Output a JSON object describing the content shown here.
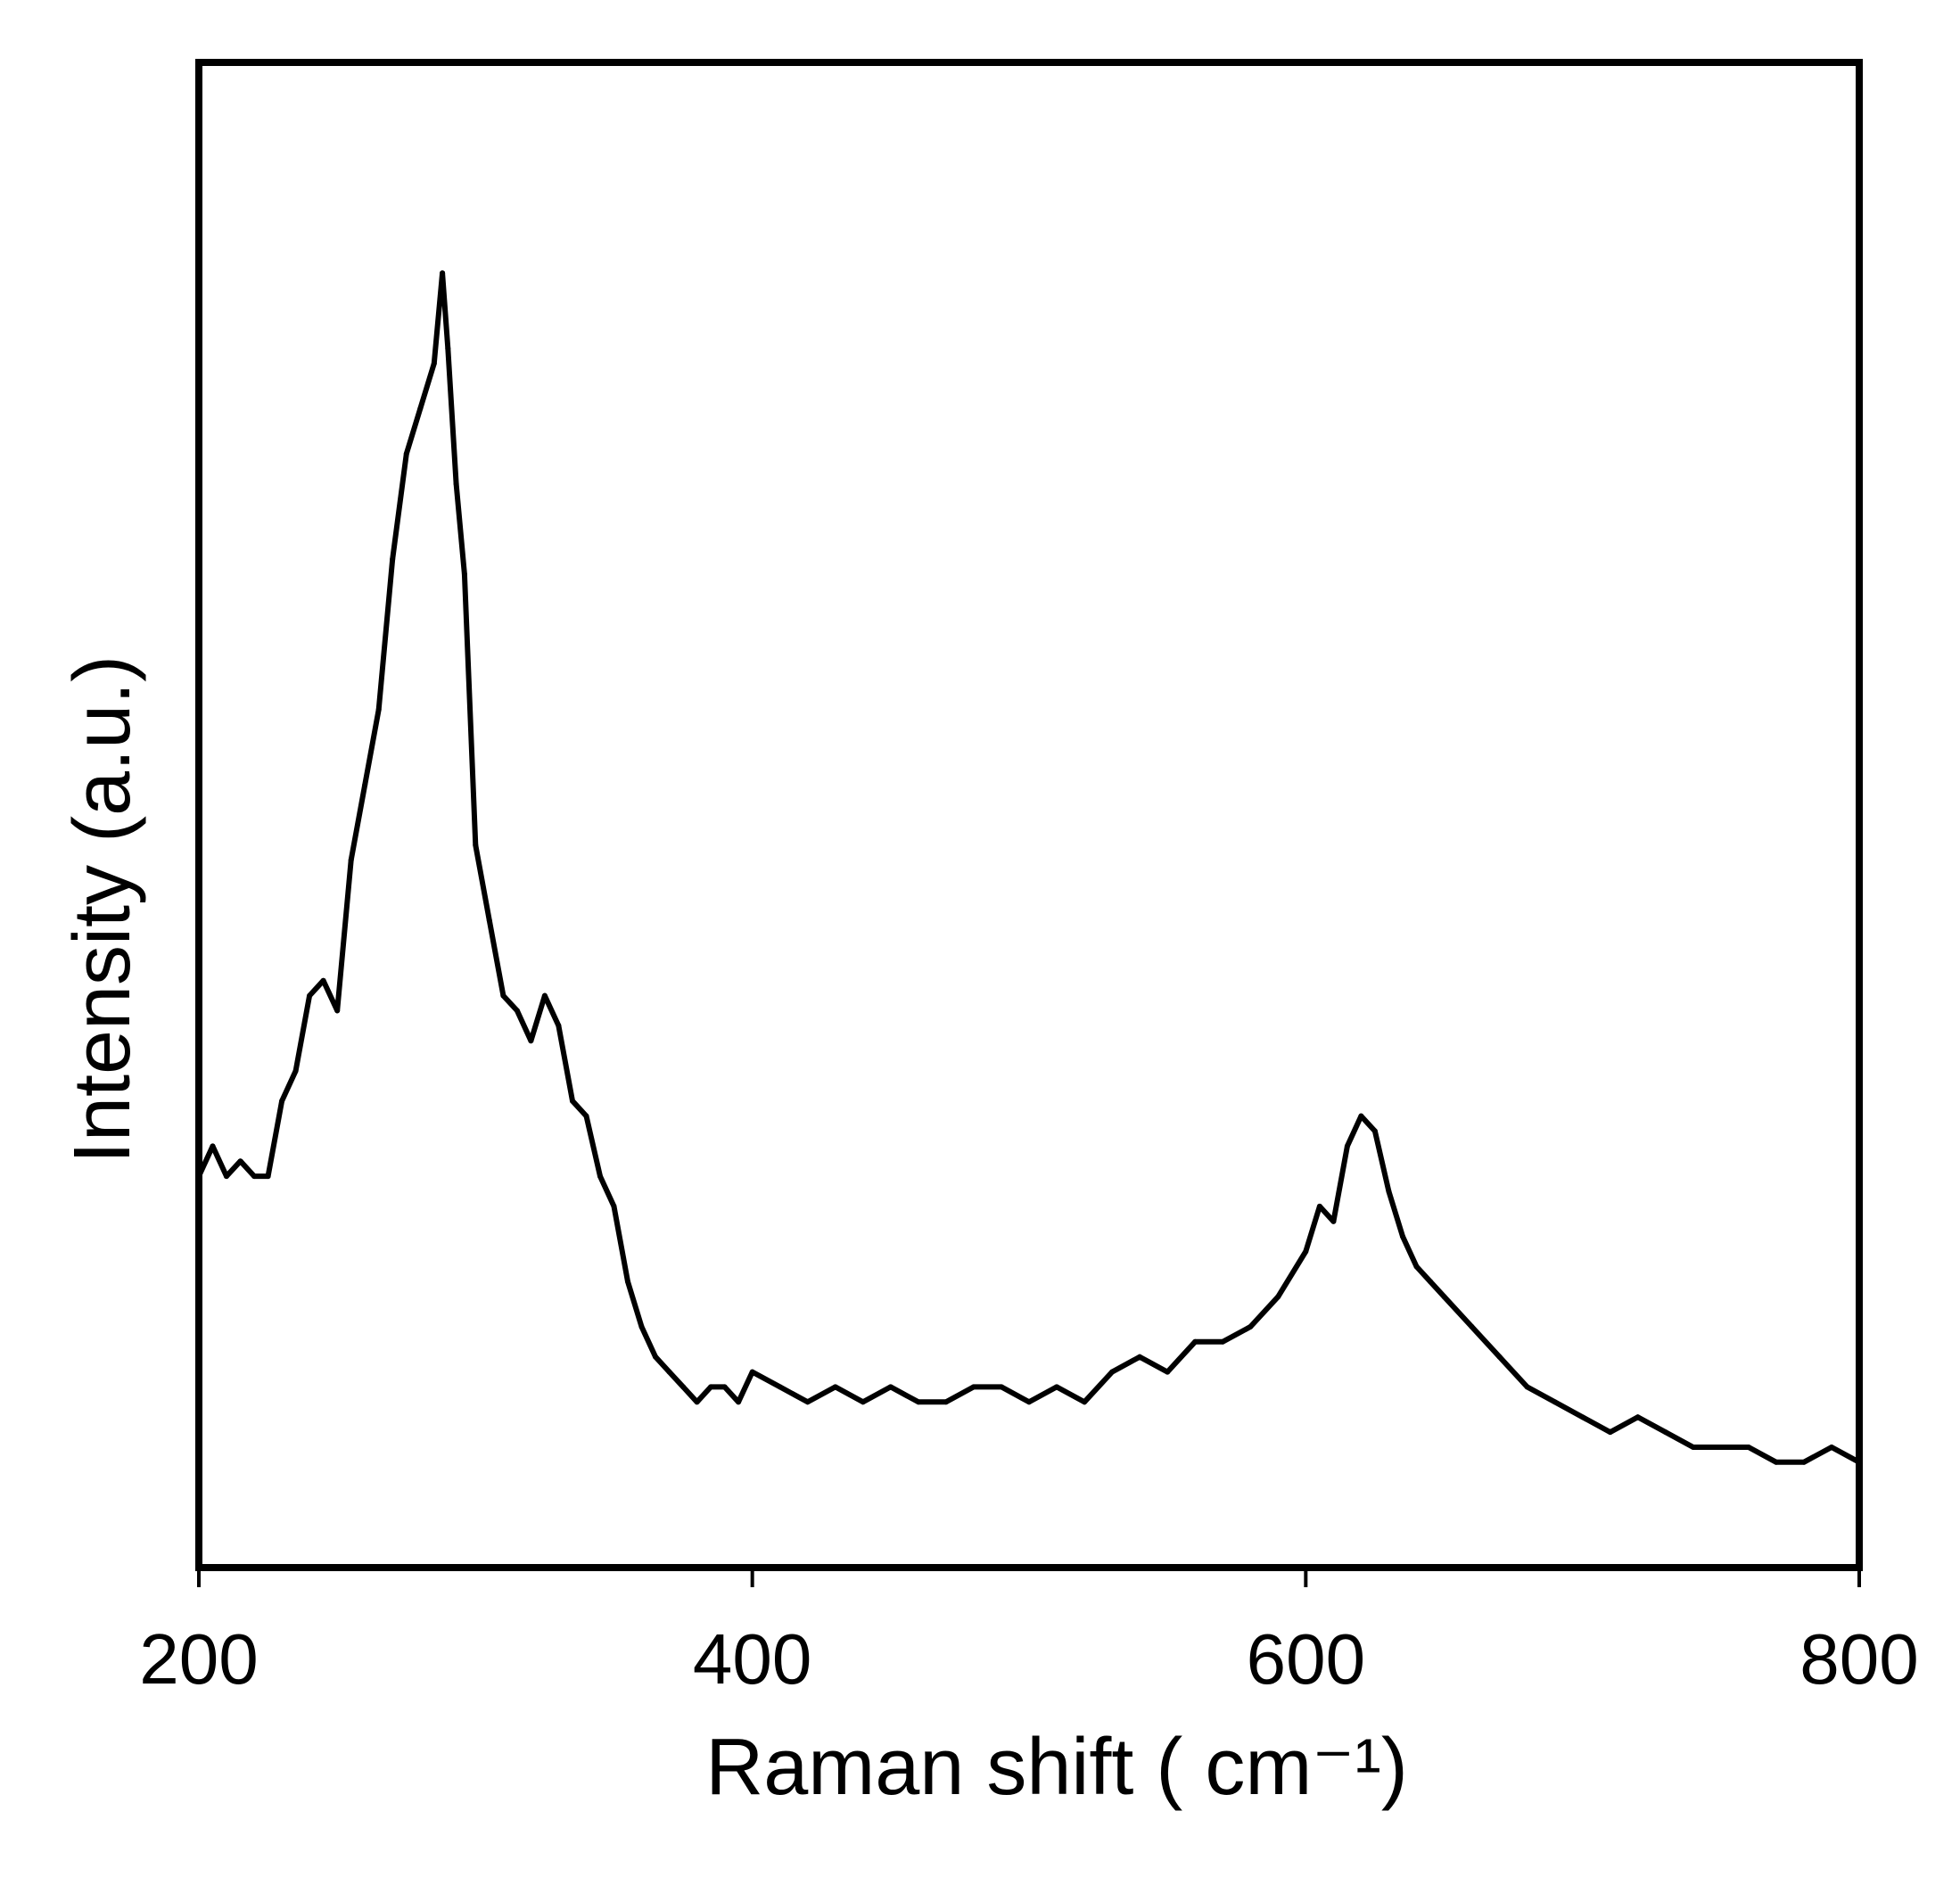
{
  "chart_data": {
    "type": "line",
    "title": "",
    "xlabel": "Raman shift ( cm⁻¹)",
    "ylabel": "Intensity (a.u.)",
    "xlim": [
      200,
      800
    ],
    "ylim": [
      0,
      100
    ],
    "x_ticks": [
      "200",
      "400",
      "600",
      "800"
    ],
    "y_ticks": [],
    "grid": false,
    "legend": "none",
    "line_color": "#000000",
    "series": [
      {
        "x": [
          200,
          205,
          210,
          215,
          220,
          225,
          230,
          235,
          240,
          245,
          250,
          255,
          260,
          265,
          270,
          275,
          280,
          285,
          288,
          290,
          293,
          296,
          300,
          305,
          310,
          315,
          320,
          325,
          330,
          335,
          340,
          345,
          350,
          355,
          360,
          365,
          370,
          375,
          380,
          385,
          390,
          395,
          400,
          410,
          420,
          430,
          440,
          450,
          460,
          470,
          480,
          490,
          500,
          510,
          520,
          530,
          540,
          550,
          560,
          570,
          580,
          590,
          600,
          605,
          610,
          615,
          620,
          625,
          630,
          635,
          640,
          645,
          650,
          660,
          670,
          680,
          690,
          700,
          710,
          720,
          730,
          740,
          750,
          760,
          770,
          780,
          790,
          800
        ],
        "y": [
          26,
          28,
          26,
          27,
          26,
          26,
          31,
          33,
          38,
          39,
          37,
          47,
          52,
          57,
          67,
          74,
          77,
          80,
          86,
          81,
          72,
          66,
          48,
          43,
          38,
          37,
          35,
          38,
          36,
          31,
          30,
          26,
          24,
          19,
          16,
          14,
          13,
          12,
          11,
          12,
          12,
          11,
          13,
          12,
          11,
          12,
          11,
          12,
          11,
          11,
          12,
          12,
          11,
          12,
          11,
          13,
          14,
          13,
          15,
          15,
          16,
          18,
          21,
          24,
          23,
          28,
          30,
          29,
          25,
          22,
          20,
          19,
          18,
          16,
          14,
          12,
          11,
          10,
          9,
          10,
          9,
          8,
          8,
          8,
          7,
          7,
          8,
          7
        ]
      }
    ]
  }
}
